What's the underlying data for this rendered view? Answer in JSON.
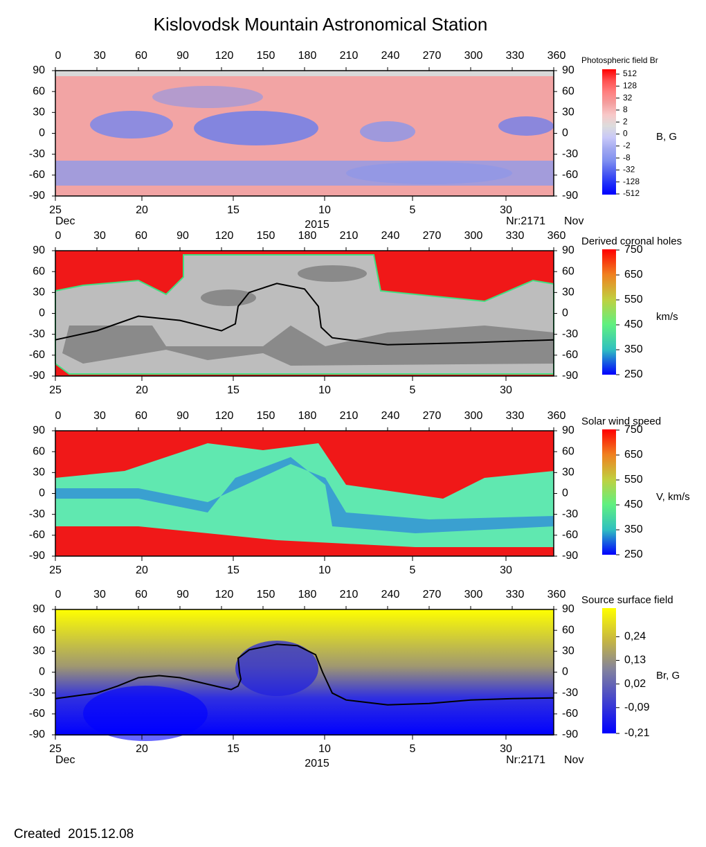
{
  "title": "Kislovodsk Mountain Astronomical Station",
  "footer": "Created  2015.12.08",
  "chart_data": [
    {
      "type": "heatmap",
      "title": "Photospheric field Br",
      "colorbar_label": "B, G",
      "xlim": [
        0,
        360
      ],
      "xticks": [
        0,
        30,
        60,
        90,
        120,
        150,
        180,
        210,
        240,
        270,
        300,
        330,
        360
      ],
      "ylim": [
        -90,
        90
      ],
      "yticks": [
        -90,
        -60,
        -30,
        0,
        30,
        60,
        90
      ],
      "date_ticks": [
        {
          "value": 0,
          "label": "25"
        },
        {
          "value": 62.5,
          "label": "20"
        },
        {
          "value": 128.5,
          "label": "15"
        },
        {
          "value": 194.5,
          "label": "10"
        },
        {
          "value": 258,
          "label": "5"
        },
        {
          "value": 325.5,
          "label": "30"
        }
      ],
      "date_labels": {
        "month_left": "Dec",
        "year": "2015",
        "rotation": "Nr:2171",
        "month_right": "Nov"
      },
      "colorbar_scale": "levels",
      "colorbar_ticks": [
        512,
        128,
        32,
        8,
        2,
        0,
        -2,
        -8,
        -32,
        -128,
        -512
      ],
      "colorbar_colors": [
        "#ff0000",
        "#ff5050",
        "#ff8080",
        "#f4a0a0",
        "#f8c8c8",
        "#dcdcdc",
        "#c8c8f8",
        "#a0a8f0",
        "#8090f0",
        "#5060f0",
        "#2030f8",
        "#0000ff"
      ]
    },
    {
      "type": "heatmap",
      "title": "Derived coronal holes",
      "colorbar_label": "km/s",
      "xlim": [
        0,
        360
      ],
      "xticks": [
        0,
        30,
        60,
        90,
        120,
        150,
        180,
        210,
        240,
        270,
        300,
        330,
        360
      ],
      "ylim": [
        -90,
        90
      ],
      "yticks": [
        -90,
        -60,
        -30,
        0,
        30,
        60,
        90
      ],
      "date_ticks": [
        {
          "value": 0,
          "label": "25"
        },
        {
          "value": 62.5,
          "label": "20"
        },
        {
          "value": 128.5,
          "label": "15"
        },
        {
          "value": 194.5,
          "label": "10"
        },
        {
          "value": 258,
          "label": "5"
        },
        {
          "value": 325.5,
          "label": "30"
        }
      ],
      "colorbar_scale": "linear",
      "clim": [
        250,
        750
      ],
      "colorbar_ticks": [
        750,
        650,
        550,
        450,
        350,
        250
      ],
      "colorbar_colors": [
        "#ff0000",
        "#f08020",
        "#c0d040",
        "#60f080",
        "#30c0c0",
        "#0000ff"
      ],
      "neutral_line": {
        "color": "#000000",
        "x": [
          0,
          30,
          60,
          90,
          120,
          130,
          132,
          140,
          160,
          180,
          190,
          192,
          200,
          240,
          300,
          360
        ],
        "values": [
          -38,
          -25,
          -4,
          -10,
          -25,
          -15,
          10,
          30,
          43,
          35,
          10,
          -20,
          -35,
          -45,
          -42,
          -38
        ]
      }
    },
    {
      "type": "heatmap",
      "title": "Solar wind speed",
      "colorbar_label": "V, km/s",
      "xlim": [
        0,
        360
      ],
      "xticks": [
        0,
        30,
        60,
        90,
        120,
        150,
        180,
        210,
        240,
        270,
        300,
        330,
        360
      ],
      "ylim": [
        -90,
        90
      ],
      "yticks": [
        -90,
        -60,
        -30,
        0,
        30,
        60,
        90
      ],
      "date_ticks": [
        {
          "value": 0,
          "label": "25"
        },
        {
          "value": 62.5,
          "label": "20"
        },
        {
          "value": 128.5,
          "label": "15"
        },
        {
          "value": 194.5,
          "label": "10"
        },
        {
          "value": 258,
          "label": "5"
        },
        {
          "value": 325.5,
          "label": "30"
        }
      ],
      "colorbar_scale": "linear",
      "clim": [
        250,
        750
      ],
      "colorbar_ticks": [
        750,
        650,
        550,
        450,
        350,
        250
      ],
      "colorbar_colors": [
        "#ff0000",
        "#f08020",
        "#c0d040",
        "#60f080",
        "#30c0c0",
        "#0000ff"
      ]
    },
    {
      "type": "heatmap",
      "title": "Source surface field",
      "colorbar_label": "Br, G",
      "xlim": [
        0,
        360
      ],
      "xticks": [
        0,
        30,
        60,
        90,
        120,
        150,
        180,
        210,
        240,
        270,
        300,
        330,
        360
      ],
      "ylim": [
        -90,
        90
      ],
      "yticks": [
        -90,
        -60,
        -30,
        0,
        30,
        60,
        90
      ],
      "date_ticks": [
        {
          "value": 0,
          "label": "25"
        },
        {
          "value": 62.5,
          "label": "20"
        },
        {
          "value": 128.5,
          "label": "15"
        },
        {
          "value": 194.5,
          "label": "10"
        },
        {
          "value": 258,
          "label": "5"
        },
        {
          "value": 325.5,
          "label": "30"
        }
      ],
      "date_labels": {
        "month_left": "Dec",
        "year": "2015",
        "rotation": "Nr:2171",
        "month_right": "Nov"
      },
      "colorbar_scale": "linear",
      "clim": [
        -0.21,
        0.37
      ],
      "colorbar_ticks": [
        {
          "value": 0.24,
          "label": "0,24"
        },
        {
          "value": 0.13,
          "label": "0,13"
        },
        {
          "value": 0.02,
          "label": "0,02"
        },
        {
          "value": -0.09,
          "label": "-0,09"
        },
        {
          "value": -0.21,
          "label": "-0,21"
        }
      ],
      "colorbar_colors": [
        "#ffff00",
        "#c8b840",
        "#8080a0",
        "#4040d0",
        "#0000ff"
      ],
      "neutral_line": {
        "color": "#000000",
        "x": [
          0,
          30,
          45,
          60,
          75,
          90,
          105,
          120,
          127,
          132,
          134,
          133,
          132,
          140,
          160,
          175,
          188,
          193,
          200,
          210,
          240,
          270,
          300,
          330,
          360
        ],
        "values": [
          -38,
          -30,
          -20,
          -8,
          -5,
          -8,
          -15,
          -22,
          -25,
          -20,
          -10,
          0,
          20,
          32,
          40,
          38,
          25,
          0,
          -30,
          -40,
          -47,
          -45,
          -40,
          -38,
          -37
        ]
      }
    }
  ]
}
